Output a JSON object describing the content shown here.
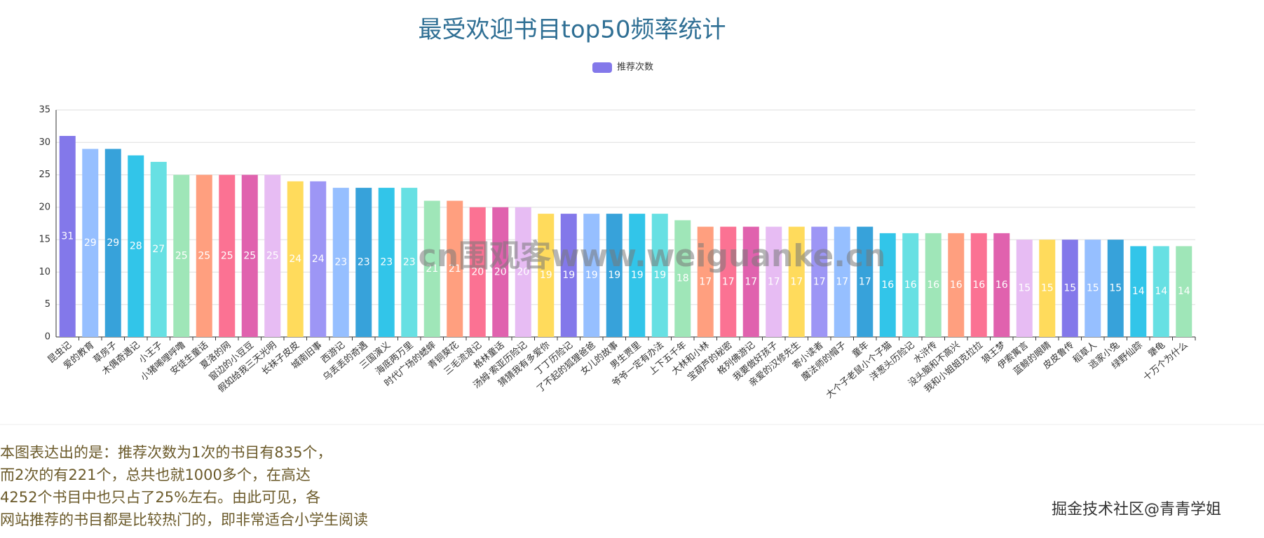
{
  "chart_data": {
    "type": "bar",
    "title": "最受欢迎书目top50频率统计",
    "legend": "推荐次数",
    "legend_color": "#8378ea",
    "categories": [
      "昆虫记",
      "爱的教育",
      "草房子",
      "木偶奇遇记",
      "小王子",
      "小猪唏哩呼噜",
      "安徒生童话",
      "夏洛的网",
      "窗边的小豆豆",
      "假如给我三天光明",
      "长袜子皮皮",
      "城南旧事",
      "西游记",
      "乌丢丢的奇遇",
      "三国演义",
      "海底两万里",
      "时代广场的蟋蟀",
      "青铜葵花",
      "三毛流浪记",
      "格林童话",
      "汤姆·索亚历险记",
      "猜猜我有多爱你",
      "丁丁历险记",
      "了不起的狐狸爸爸",
      "女儿的故事",
      "男生贾里",
      "爷爷一定有办法",
      "上下五千年",
      "大林和小林",
      "宝葫芦的秘密",
      "格列佛游记",
      "我要做好孩子",
      "亲爱的汉修先生",
      "寄小读者",
      "魔法师的帽子",
      "童年",
      "大个子老鼠小个子猫",
      "洋葱头历险记",
      "水浒传",
      "没头脑和不高兴",
      "我和小姐姐克拉拉",
      "狼王梦",
      "伊索寓言",
      "蓝鲸的眼睛",
      "皮皮鲁传",
      "稻草人",
      "逃家小兔",
      "绿野仙踪",
      "犟龟",
      "十万个为什么"
    ],
    "values": [
      31,
      29,
      29,
      28,
      27,
      25,
      25,
      25,
      25,
      25,
      24,
      24,
      23,
      23,
      23,
      23,
      21,
      21,
      20,
      20,
      20,
      19,
      19,
      19,
      19,
      19,
      19,
      18,
      17,
      17,
      17,
      17,
      17,
      17,
      17,
      17,
      16,
      16,
      16,
      16,
      16,
      16,
      15,
      15,
      15,
      15,
      15,
      14,
      14,
      14
    ],
    "colors": [
      "#8378ea",
      "#96bfff",
      "#37a2da",
      "#32c5e9",
      "#67e0e3",
      "#9fe6b8",
      "#ff9f7f",
      "#fb7293",
      "#e062ae",
      "#e7bcf3",
      "#ffdb5c",
      "#9d96f5",
      "#96bfff",
      "#37a2da",
      "#32c5e9",
      "#67e0e3",
      "#9fe6b8",
      "#ff9f7f",
      "#fb7293",
      "#e062ae",
      "#e7bcf3",
      "#ffdb5c"
    ],
    "ylim": [
      0,
      35
    ],
    "yticks": [
      0,
      5,
      10,
      15,
      20,
      25,
      30,
      35
    ],
    "grid": true,
    "watermark": "cn围观客www.weiguanke.cn"
  },
  "description_lines": [
    "本图表达出的是：推荐次数为1次的书目有835个，",
    "而2次的有221个，总共也就1000多个，在高达",
    "4252个书目中也只占了25%左右。由此可见，各",
    "网站推荐的书目都是比较热门的，即非常适合小学生阅读"
  ],
  "footer": "掘金技术社区@青青学姐"
}
